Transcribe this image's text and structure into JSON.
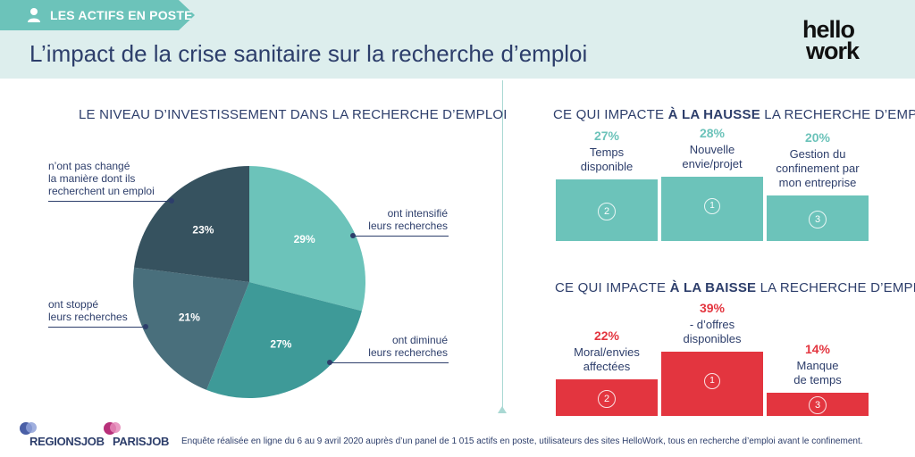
{
  "header": {
    "tag": "LES ACTIFS EN POSTE",
    "title": "L’impact de la crise sanitaire sur la recherche d’emploi",
    "logo_line1": "hello",
    "logo_line2": "work"
  },
  "pie_section": {
    "title": "LE NIVEAU D’INVESTISSEMENT DANS LA RECHERCHE D’EMPLOI"
  },
  "hausse_section": {
    "title_pre": "CE QUI IMPACTE ",
    "title_bold": "À LA HAUSSE",
    "title_post": " LA RECHERCHE D’EMPLOI"
  },
  "baisse_section": {
    "title_pre": "CE QUI IMPACTE ",
    "title_bold": "À LA BAISSE",
    "title_post": " LA RECHERCHE D’EMPLOI"
  },
  "colors": {
    "teal_light": "#6cc3ba",
    "teal_mid": "#3e9a98",
    "slate": "#496f7c",
    "slate_dark": "#36525f",
    "red": "#e3353f",
    "navy": "#2d3e6b"
  },
  "chart_data": [
    {
      "type": "pie",
      "title": "LE NIVEAU D’INVESTISSEMENT DANS LA RECHERCHE D’EMPLOI",
      "slices": [
        {
          "label": "ont intensifié leurs recherches",
          "value": 29,
          "display": "29%",
          "color": "#6cc3ba"
        },
        {
          "label": "ont diminué leurs recherches",
          "value": 27,
          "display": "27%",
          "color": "#3e9a98"
        },
        {
          "label": "ont stoppé leurs recherches",
          "value": 21,
          "display": "21%",
          "color": "#496f7c"
        },
        {
          "label": "n’ont pas changé la manière dont ils recherchent un emploi",
          "value": 23,
          "display": "23%",
          "color": "#36525f"
        }
      ]
    },
    {
      "type": "bar",
      "title": "CE QUI IMPACTE À LA HAUSSE LA RECHERCHE D’EMPLOI",
      "categories": [
        "Temps disponible",
        "Nouvelle envie/projet",
        "Gestion du confinement par mon entreprise"
      ],
      "values": [
        27,
        28,
        20
      ],
      "ranks": [
        "2",
        "1",
        "3"
      ],
      "color": "#6cc3ba"
    },
    {
      "type": "bar",
      "title": "CE QUI IMPACTE À LA BAISSE LA RECHERCHE D’EMPLOI",
      "categories": [
        "Moral/envies affectées",
        "- d’offres disponibles",
        "Manque de temps"
      ],
      "values": [
        22,
        39,
        14
      ],
      "ranks": [
        "2",
        "1",
        "3"
      ],
      "color": "#e3353f"
    }
  ],
  "pie_callouts": [
    [
      "ont intensifié",
      "leurs recherches"
    ],
    [
      "ont diminué",
      "leurs recherches"
    ],
    [
      "ont stoppé",
      "leurs recherches"
    ],
    [
      "n’ont pas changé",
      "la manière dont ils",
      "recherchent un emploi"
    ]
  ],
  "bars_hausse": [
    {
      "pct": "27%",
      "lines": [
        "Temps",
        "disponible"
      ]
    },
    {
      "pct": "28%",
      "lines": [
        "Nouvelle",
        "envie/projet"
      ]
    },
    {
      "pct": "20%",
      "lines": [
        "Gestion du",
        "confinement par",
        "mon entreprise"
      ]
    }
  ],
  "bars_baisse": [
    {
      "pct": "22%",
      "lines": [
        "Moral/envies",
        "affectées"
      ]
    },
    {
      "pct": "39%",
      "lines": [
        "- d’offres",
        "disponibles"
      ]
    },
    {
      "pct": "14%",
      "lines": [
        "Manque",
        "de temps"
      ]
    }
  ],
  "footer": {
    "logo1": "REGIONSJOB",
    "logo2": "PARISJOB",
    "note": "Enquête réalisée en ligne du 6 au 9 avril 2020 auprès d’un panel de 1 015 actifs en poste, utilisateurs des sites HelloWork, tous en recherche d’emploi avant le confinement."
  }
}
